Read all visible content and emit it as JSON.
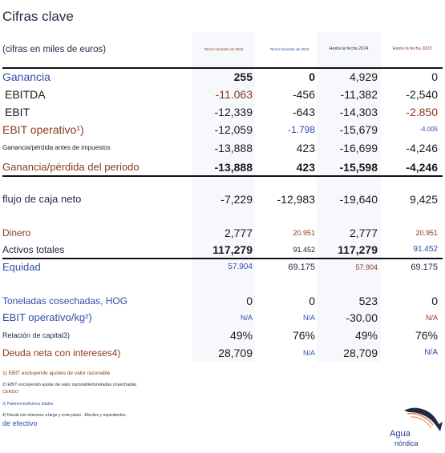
{
  "header": {
    "title": "Cifras clave",
    "subtitle": "(cifras en miles de euros)",
    "columns": [
      "Tercer trimestre de 2024",
      "Tercer trimestre de 2023",
      "Hasta la fecha 2024",
      "Hasta la fecha 2023"
    ]
  },
  "rows": [
    {
      "label": "Ganancia",
      "values": [
        "255",
        "0",
        "4,929",
        "0"
      ]
    },
    {
      "label": "EBITDA",
      "values": [
        "-11.063",
        "-456",
        "-11,382",
        "-2,540"
      ]
    },
    {
      "label": "EBIT",
      "values": [
        "-12,339",
        "-643",
        "-14,303",
        "-2.850"
      ]
    },
    {
      "label": "EBIT operativo¹)",
      "values": [
        "-12,059",
        "-1.798",
        "-15,679",
        "-4.005"
      ]
    },
    {
      "label": "Ganancia/pérdida antes de impuestos",
      "values": [
        "-13,888",
        "423",
        "-16,699",
        "-4,246"
      ]
    },
    {
      "label": "Ganancia/pérdida del periodo",
      "values": [
        "-13,888",
        "423",
        "-15,598",
        "-4,246"
      ]
    },
    {
      "label": "flujo de caja neto",
      "values": [
        "-7,229",
        "-12,983",
        "-19,640",
        "9,425"
      ]
    },
    {
      "label": "Dinero",
      "values": [
        "2,777",
        "20.951",
        "2,777",
        "20.951"
      ]
    },
    {
      "label": "Activos totales",
      "values": [
        "117,279",
        "91.452",
        "117,279",
        "91.452"
      ]
    },
    {
      "label": "Equidad",
      "values": [
        "57.904",
        "69.175",
        "57.904",
        "69.175"
      ]
    },
    {
      "label": "Toneladas cosechadas, HOG",
      "values": [
        "0",
        "0",
        "523",
        "0"
      ]
    },
    {
      "label": "EBIT operativo/kg²)",
      "values": [
        "N/A",
        "N/A",
        "-30.00",
        "N/A"
      ]
    },
    {
      "label": "Relación de capital3)",
      "values": [
        "49%",
        "76%",
        "49%",
        "76%"
      ]
    },
    {
      "label": "Deuda neta con intereses4)",
      "values": [
        "28,709",
        "N/A",
        "28,709",
        "N/A"
      ]
    }
  ],
  "footnotes": [
    "1) EBIT excluyendo ajustes de valor razonable",
    "2) EBIT excluyendo ajuste de valor razonable/toneladas cosechadas",
    "CERDO",
    "3) Patrimonio/Activos totales",
    "4) Deuda con intereses a largo y corto plazo - Efectivo y equivalentes",
    "de efectivo"
  ],
  "logo": {
    "line1": "Agua",
    "line2": "nórdica"
  },
  "colors": {
    "navy": "#1f2a44",
    "blue": "#2f4fa8",
    "brown": "#8a3a1e",
    "highlight_bg": "#f6f8fb"
  }
}
